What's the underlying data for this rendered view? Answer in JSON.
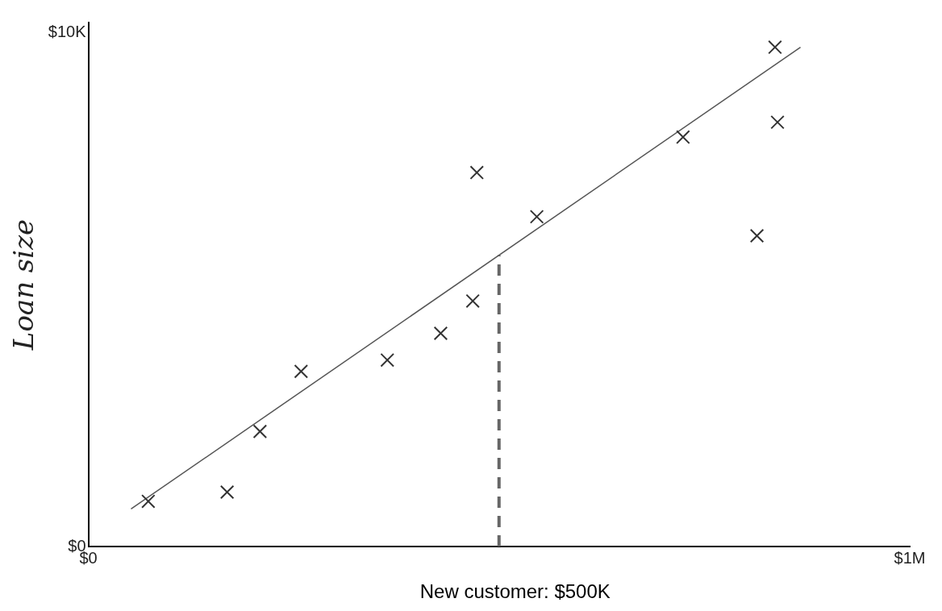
{
  "chart_data": {
    "type": "scatter",
    "ylabel": "Loan size",
    "xlim": [
      0,
      1000000
    ],
    "ylim": [
      0,
      10.2
    ],
    "xticks": [
      {
        "value": 0,
        "label": "$0"
      },
      {
        "value": 1000000,
        "label": "$1M"
      }
    ],
    "yticks": [
      {
        "value": 0,
        "label": "$0"
      },
      {
        "value": 10,
        "label": "$10K"
      }
    ],
    "grid": false,
    "legend": false,
    "series": [
      {
        "marker": "cross",
        "color": "#333333",
        "x": [
          73000,
          169000,
          209000,
          259000,
          364000,
          429000,
          468000,
          473000,
          546000,
          724000,
          814000,
          839000,
          836000
        ],
        "values": [
          0.88,
          1.06,
          2.24,
          3.41,
          3.63,
          4.15,
          4.78,
          7.28,
          6.42,
          7.97,
          6.05,
          8.26,
          9.72
        ]
      },
      {
        "type": "line",
        "color": "#555555",
        "line_style": "solid",
        "x": [
          52000,
          867000
        ],
        "values": [
          0.73,
          9.72
        ]
      },
      {
        "type": "line",
        "color": "#666666",
        "line_style": "dashed",
        "x": [
          500000,
          500000
        ],
        "values": [
          0,
          5.67
        ]
      }
    ],
    "annotations": [
      "New customer: $500K"
    ]
  }
}
